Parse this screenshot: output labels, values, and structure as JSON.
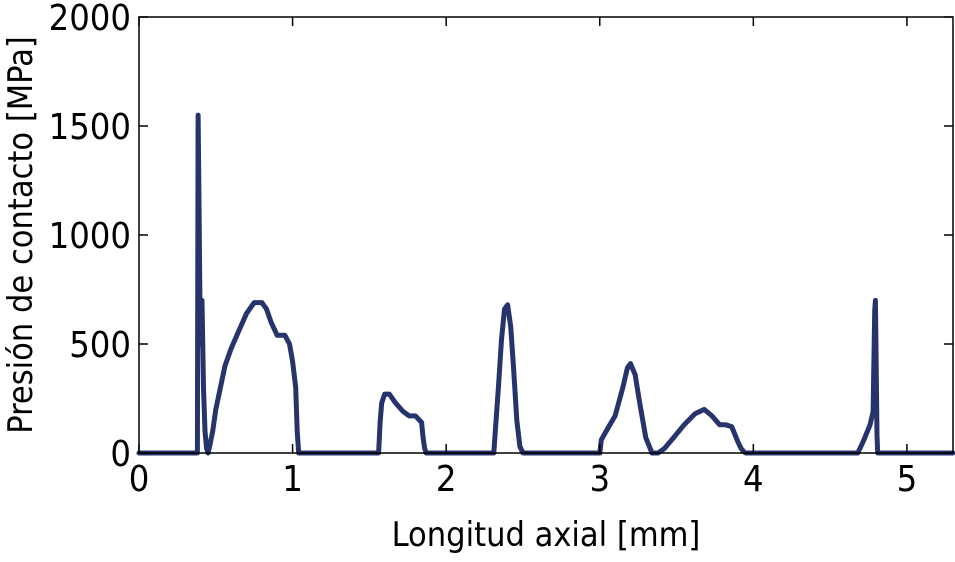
{
  "chart_data": {
    "type": "line",
    "title": "",
    "xlabel": "Longitud axial [mm]",
    "ylabel": "Presión de contacto [MPa]",
    "xlim": [
      0,
      5.3
    ],
    "ylim": [
      0,
      2000
    ],
    "xticks": [
      0,
      1,
      2,
      3,
      4,
      5
    ],
    "yticks": [
      0,
      500,
      1000,
      1500,
      2000
    ],
    "xtick_labels": [
      "0",
      "1",
      "2",
      "3",
      "4",
      "5"
    ],
    "ytick_labels": [
      "0",
      "500",
      "1000",
      "1500",
      "2000"
    ],
    "grid": false,
    "legend": "none",
    "line_color": "#27336b",
    "series": [
      {
        "x": [
          0,
          0.38,
          0.385,
          0.39,
          0.395,
          0.4,
          0.41,
          0.42,
          0.43,
          0.44,
          0.45,
          0.46,
          0.48,
          0.5,
          0.53,
          0.56,
          0.6,
          0.65,
          0.7,
          0.75,
          0.8,
          0.83,
          0.86,
          0.9,
          0.95,
          0.98,
          1.0,
          1.02,
          1.03,
          1.04,
          1.05,
          1.56,
          1.57,
          1.58,
          1.6,
          1.63,
          1.67,
          1.72,
          1.76,
          1.8,
          1.84,
          1.85,
          1.86,
          1.87,
          2.31,
          2.32,
          2.34,
          2.36,
          2.38,
          2.4,
          2.42,
          2.44,
          2.46,
          2.48,
          2.5,
          2.52,
          3.0,
          3.01,
          3.05,
          3.1,
          3.15,
          3.18,
          3.2,
          3.23,
          3.26,
          3.3,
          3.34,
          3.38,
          3.42,
          3.48,
          3.55,
          3.62,
          3.68,
          3.73,
          3.78,
          3.82,
          3.86,
          3.9,
          3.92,
          3.94,
          3.95,
          4.68,
          4.72,
          4.76,
          4.78,
          4.79,
          4.795,
          4.8,
          4.805,
          4.81,
          5.3
        ],
        "y": [
          0,
          0,
          1550,
          1200,
          800,
          500,
          700,
          300,
          100,
          20,
          0,
          30,
          100,
          200,
          300,
          400,
          480,
          560,
          640,
          690,
          690,
          660,
          600,
          540,
          540,
          500,
          420,
          300,
          100,
          0,
          0,
          0,
          140,
          230,
          270,
          270,
          230,
          190,
          170,
          170,
          140,
          70,
          20,
          0,
          0,
          100,
          300,
          520,
          660,
          680,
          580,
          380,
          150,
          30,
          0,
          0,
          0,
          60,
          110,
          170,
          300,
          390,
          410,
          360,
          230,
          70,
          0,
          0,
          20,
          70,
          130,
          180,
          200,
          170,
          130,
          130,
          120,
          50,
          20,
          5,
          0,
          0,
          60,
          130,
          190,
          650,
          700,
          400,
          80,
          0,
          0
        ]
      }
    ]
  }
}
